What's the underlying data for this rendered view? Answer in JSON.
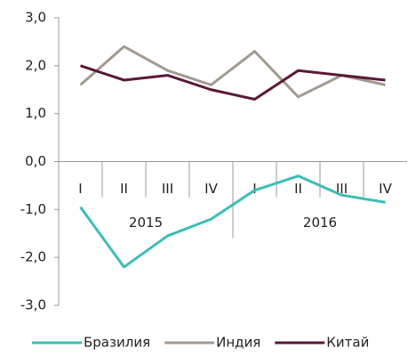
{
  "chart_data": {
    "type": "line",
    "categories": [
      "I",
      "II",
      "III",
      "IV",
      "I",
      "II",
      "III",
      "IV"
    ],
    "groups": [
      "2015",
      "2016"
    ],
    "series": [
      {
        "name": "Бразилия",
        "color": "#3dbdb6",
        "values": [
          -0.95,
          -2.2,
          -1.55,
          -1.2,
          -0.6,
          -0.3,
          -0.7,
          -0.85
        ]
      },
      {
        "name": "Индия",
        "color": "#a39a90",
        "values": [
          1.6,
          2.4,
          1.9,
          1.6,
          2.3,
          1.35,
          1.8,
          1.6
        ]
      },
      {
        "name": "Китай",
        "color": "#5a1838",
        "values": [
          2.0,
          1.7,
          1.8,
          1.5,
          1.3,
          1.9,
          1.8,
          1.7
        ]
      }
    ],
    "ylim": [
      -3,
      3
    ],
    "yticks": [
      {
        "value": 3,
        "label": "3,0"
      },
      {
        "value": 2,
        "label": "2,0"
      },
      {
        "value": 1,
        "label": "1,0"
      },
      {
        "value": 0,
        "label": "0,0"
      },
      {
        "value": -1,
        "label": "-1,0"
      },
      {
        "value": -2,
        "label": "-2,0"
      },
      {
        "value": -3,
        "label": "-3,0"
      }
    ]
  }
}
